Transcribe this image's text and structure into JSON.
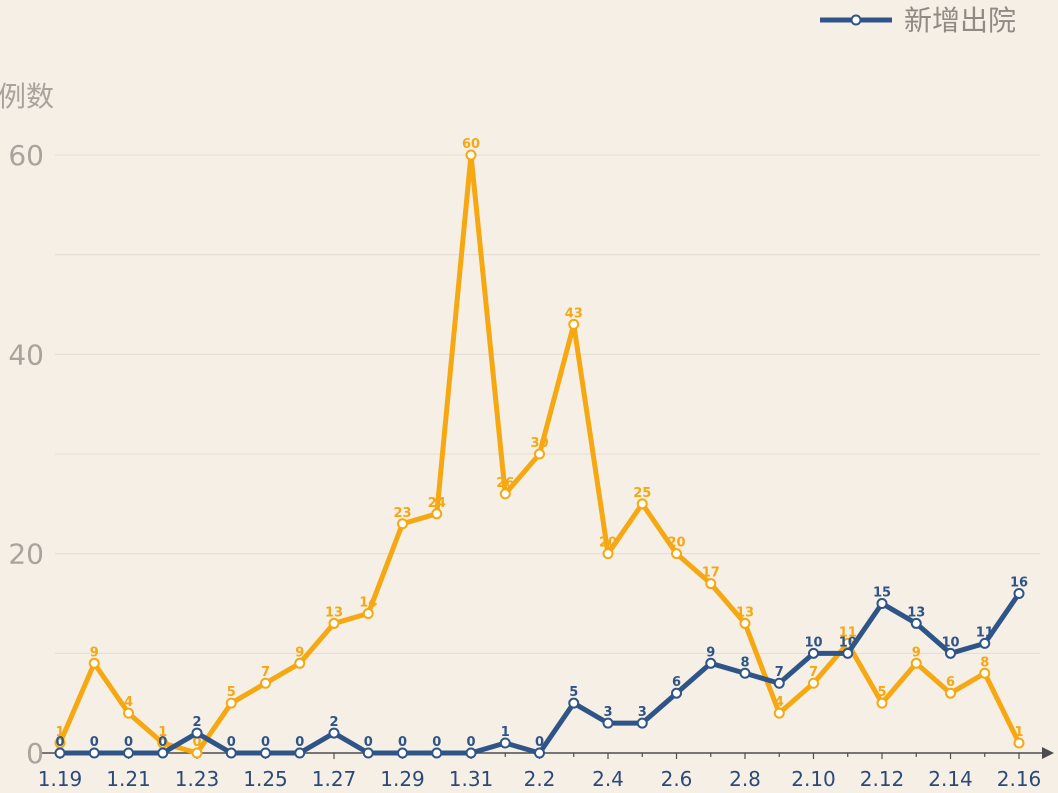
{
  "chart_data": {
    "type": "line",
    "ylabel": "例数",
    "ylim": [
      0,
      60
    ],
    "y_ticks": [
      0,
      20,
      40,
      60
    ],
    "grid": true,
    "legend_position": "top-right",
    "x": [
      "1.19",
      "1.20",
      "1.21",
      "1.22",
      "1.23",
      "1.24",
      "1.25",
      "1.26",
      "1.27",
      "1.28",
      "1.29",
      "1.30",
      "1.31",
      "2.1",
      "2.2",
      "2.3",
      "2.4",
      "2.5",
      "2.6",
      "2.7",
      "2.8",
      "2.9",
      "2.10",
      "2.11",
      "2.12",
      "2.13",
      "2.14",
      "2.15",
      "2.16"
    ],
    "x_tick_labels": [
      "1.19",
      "1.21",
      "1.23",
      "1.25",
      "1.27",
      "1.29",
      "1.31",
      "2.2",
      "2.4",
      "2.6",
      "2.8",
      "2.10",
      "2.12",
      "2.14",
      "2.16"
    ],
    "series": [
      {
        "values": [
          1,
          9,
          4,
          1,
          0,
          5,
          7,
          9,
          13,
          14,
          23,
          24,
          60,
          26,
          30,
          43,
          20,
          25,
          20,
          17,
          13,
          4,
          7,
          11,
          5,
          9,
          6,
          8,
          1
        ],
        "color": "#f5a812"
      },
      {
        "name": "新增出院",
        "values": [
          0,
          0,
          0,
          0,
          2,
          0,
          0,
          0,
          2,
          0,
          0,
          0,
          0,
          1,
          0,
          5,
          3,
          3,
          6,
          9,
          8,
          7,
          10,
          10,
          15,
          13,
          10,
          11,
          16
        ],
        "color": "#2e5488"
      }
    ]
  }
}
